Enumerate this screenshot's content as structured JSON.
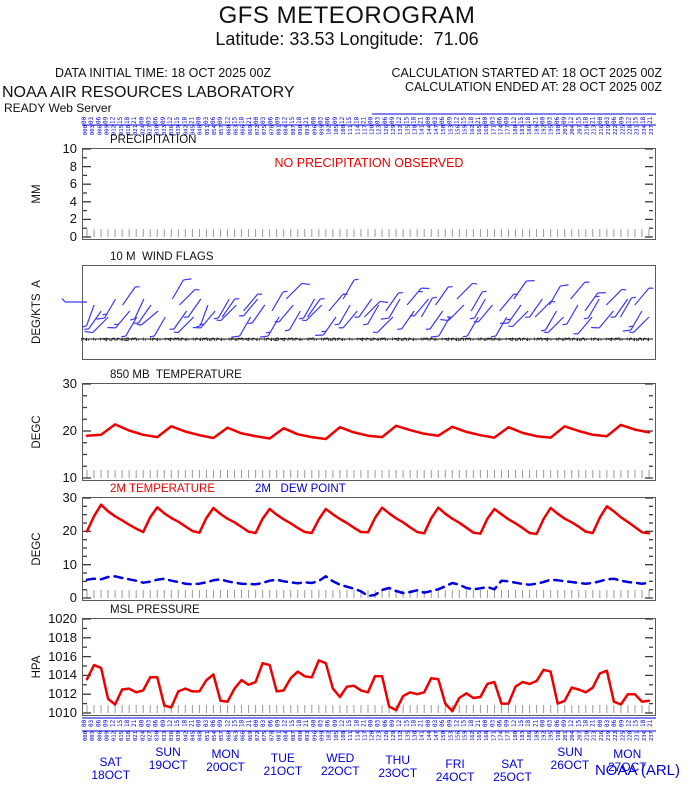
{
  "header": {
    "title": "GFS METEOROGRAM",
    "subtitle": "Latitude: 33.53 Longitude:  71.06",
    "data_initial_time": "DATA INITIAL TIME: 18 OCT 2025 00Z",
    "calc_started": "CALCULATION STARTED AT: 18 OCT 2025 00Z",
    "calc_ended": "CALCULATION ENDED AT: 28 OCT 2025 00Z",
    "org": "NOAA AIR RESOURCES LABORATORY",
    "server": "READY Web Server"
  },
  "footer": {
    "credit": "NOAA (ARL)"
  },
  "colors": {
    "red": "#ee0000",
    "blue": "#0000dd",
    "barb_blue": "#3a3af0",
    "axis": "#3c3c3c",
    "tick_gray": "#9a9a9a",
    "line_black": "#111111"
  },
  "x_axis": {
    "hour_cycle": [
      "00",
      "03",
      "06",
      "09",
      "12",
      "15",
      "18",
      "21"
    ],
    "forecast_hours_step": 3,
    "forecast_hours_max": 240,
    "days": [
      {
        "day": "SAT",
        "date": "18OCT"
      },
      {
        "day": "SUN",
        "date": "19OCT"
      },
      {
        "day": "MON",
        "date": "20OCT"
      },
      {
        "day": "TUE",
        "date": "21OCT"
      },
      {
        "day": "WED",
        "date": "22OCT"
      },
      {
        "day": "THU",
        "date": "23OCT"
      },
      {
        "day": "FRI",
        "date": "24OCT"
      },
      {
        "day": "SAT",
        "date": "25OCT"
      },
      {
        "day": "SUN",
        "date": "26OCT"
      },
      {
        "day": "MON",
        "date": "27OCT"
      }
    ]
  },
  "chart_data": [
    {
      "id": "precip",
      "type": "line",
      "title": "PRECIPITATION",
      "ylabel": "MM",
      "ylim": [
        0,
        10
      ],
      "yticks": [
        0,
        2,
        4,
        6,
        8,
        10
      ],
      "minor_step": 1,
      "annotation": "NO PRECIPITATION OBSERVED",
      "series": [
        {
          "name": "precipitation",
          "color": "red",
          "step_h": 3,
          "values": []
        }
      ]
    },
    {
      "id": "wind",
      "type": "wind-barbs",
      "title": "10 M  WIND FLAGS",
      "ylabel": "DEG/KTS  A",
      "barbs": {
        "step_h": 3,
        "directions_deg": [
          270,
          200,
          215,
          225,
          210,
          35,
          220,
          210,
          205,
          215,
          230,
          210,
          30,
          45,
          215,
          225,
          215,
          200,
          220,
          35,
          210,
          225,
          40,
          210,
          220,
          215,
          30,
          210,
          45,
          220,
          210,
          35,
          210,
          225,
          40,
          215,
          30,
          210,
          220,
          45,
          215,
          210,
          35,
          225,
          210,
          40,
          215,
          30,
          220,
          35,
          215,
          210,
          45,
          225,
          30,
          210,
          210,
          220,
          40,
          210,
          35,
          215,
          225,
          45,
          215,
          30,
          210,
          225,
          40,
          210,
          35,
          220,
          210,
          45,
          220,
          30,
          215,
          40,
          210,
          225
        ]
      },
      "speed_digits": "21145263112143212352123421264321313521142231452132142531232145213412325121431252"
    },
    {
      "id": "t850",
      "type": "line",
      "title": "850 MB  TEMPERATURE",
      "ylabel": "DEGC",
      "ylim": [
        10,
        30
      ],
      "yticks": [
        10,
        20,
        30
      ],
      "minor_step": 2.5,
      "series": [
        {
          "name": "850mb-temperature",
          "color": "red",
          "step_h": 6,
          "values": [
            19.0,
            19.2,
            21.4,
            20.1,
            19.2,
            18.7,
            21.0,
            19.9,
            19.1,
            18.5,
            20.7,
            19.5,
            18.9,
            18.4,
            20.6,
            19.3,
            18.7,
            18.3,
            20.8,
            19.7,
            19.0,
            18.7,
            21.1,
            20.2,
            19.4,
            19.0,
            20.9,
            19.8,
            19.1,
            18.6,
            20.8,
            19.6,
            18.9,
            18.6,
            21.0,
            20.0,
            19.2,
            18.9,
            21.3,
            20.3,
            19.7
          ]
        }
      ]
    },
    {
      "id": "t2m",
      "type": "line",
      "title": "2M TEMPERATURE",
      "title2": "2M   DEW POINT",
      "ylabel": "DEGC",
      "ylim": [
        0,
        30
      ],
      "yticks": [
        0,
        10,
        20,
        30
      ],
      "minor_step": 2.5,
      "series": [
        {
          "name": "2m-temperature",
          "color": "red",
          "step_h": 3,
          "values": [
            20.0,
            24.5,
            28.0,
            26.0,
            24.5,
            23.3,
            22.0,
            20.8,
            19.8,
            24.2,
            27.2,
            25.4,
            24.0,
            22.9,
            21.5,
            20.1,
            19.6,
            24.0,
            27.0,
            25.2,
            23.8,
            22.7,
            21.3,
            19.9,
            19.5,
            23.8,
            26.7,
            25.0,
            23.6,
            22.4,
            21.0,
            19.8,
            19.5,
            23.6,
            26.7,
            25.1,
            23.7,
            22.5,
            21.1,
            19.8,
            19.7,
            24.0,
            27.1,
            25.4,
            23.9,
            22.7,
            21.2,
            19.8,
            19.4,
            23.9,
            27.1,
            25.3,
            23.8,
            22.6,
            21.1,
            19.6,
            19.3,
            23.8,
            26.7,
            25.1,
            23.6,
            22.4,
            21.0,
            19.5,
            19.2,
            23.7,
            27.0,
            25.3,
            23.8,
            22.7,
            21.4,
            19.9,
            19.5,
            24.1,
            27.5,
            26.0,
            24.2,
            22.8,
            21.3,
            19.7,
            19.4
          ]
        },
        {
          "name": "2m-dew-point",
          "color": "blue",
          "dashed": true,
          "step_h": 3,
          "values": [
            5.5,
            5.8,
            5.6,
            6.3,
            6.5,
            6.0,
            5.6,
            5.2,
            4.6,
            4.9,
            5.5,
            5.8,
            5.2,
            4.8,
            4.3,
            4.1,
            4.3,
            4.7,
            5.3,
            5.6,
            5.0,
            4.6,
            4.3,
            4.2,
            4.1,
            4.5,
            5.2,
            5.5,
            5.0,
            4.7,
            4.4,
            4.7,
            4.5,
            5.1,
            6.5,
            5.0,
            4.0,
            3.4,
            2.8,
            2.0,
            0.6,
            0.9,
            2.4,
            3.0,
            2.1,
            1.5,
            1.8,
            2.3,
            1.6,
            2.1,
            2.6,
            3.5,
            4.5,
            4.0,
            3.0,
            2.6,
            2.9,
            3.3,
            2.6,
            5.2,
            5.0,
            4.6,
            4.2,
            4.0,
            4.3,
            4.8,
            5.5,
            5.3,
            5.0,
            4.8,
            4.5,
            4.3,
            4.5,
            5.0,
            5.6,
            5.8,
            5.2,
            4.8,
            4.6,
            4.3,
            4.5
          ]
        }
      ]
    },
    {
      "id": "mslp",
      "type": "line",
      "title": "MSL PRESSURE",
      "ylabel": "HPA",
      "ylim": [
        1010,
        1020
      ],
      "yticks": [
        1010,
        1012,
        1014,
        1016,
        1018,
        1020
      ],
      "minor_step": 1,
      "series": [
        {
          "name": "msl-pressure",
          "color": "red",
          "step_h": 3,
          "values": [
            1013.6,
            1015.1,
            1014.8,
            1011.5,
            1010.9,
            1012.5,
            1012.6,
            1012.2,
            1012.4,
            1013.8,
            1013.8,
            1010.8,
            1010.6,
            1012.3,
            1012.6,
            1012.3,
            1012.3,
            1013.5,
            1014.1,
            1011.3,
            1011.2,
            1012.6,
            1013.5,
            1013.0,
            1013.3,
            1015.3,
            1015.1,
            1012.3,
            1012.4,
            1013.7,
            1014.4,
            1013.9,
            1013.8,
            1015.6,
            1015.3,
            1012.6,
            1011.7,
            1012.8,
            1012.9,
            1012.4,
            1012.2,
            1013.9,
            1013.9,
            1010.7,
            1010.3,
            1011.8,
            1012.2,
            1012.0,
            1012.2,
            1013.7,
            1013.6,
            1011.0,
            1010.2,
            1011.6,
            1012.1,
            1011.6,
            1011.7,
            1013.1,
            1013.3,
            1011.0,
            1011.0,
            1012.8,
            1013.3,
            1013.1,
            1013.4,
            1014.6,
            1014.4,
            1011.0,
            1011.3,
            1012.7,
            1012.5,
            1012.2,
            1012.7,
            1014.2,
            1014.5,
            1011.2,
            1010.9,
            1012.0,
            1012.0,
            1011.2,
            1011.3
          ]
        }
      ]
    }
  ]
}
